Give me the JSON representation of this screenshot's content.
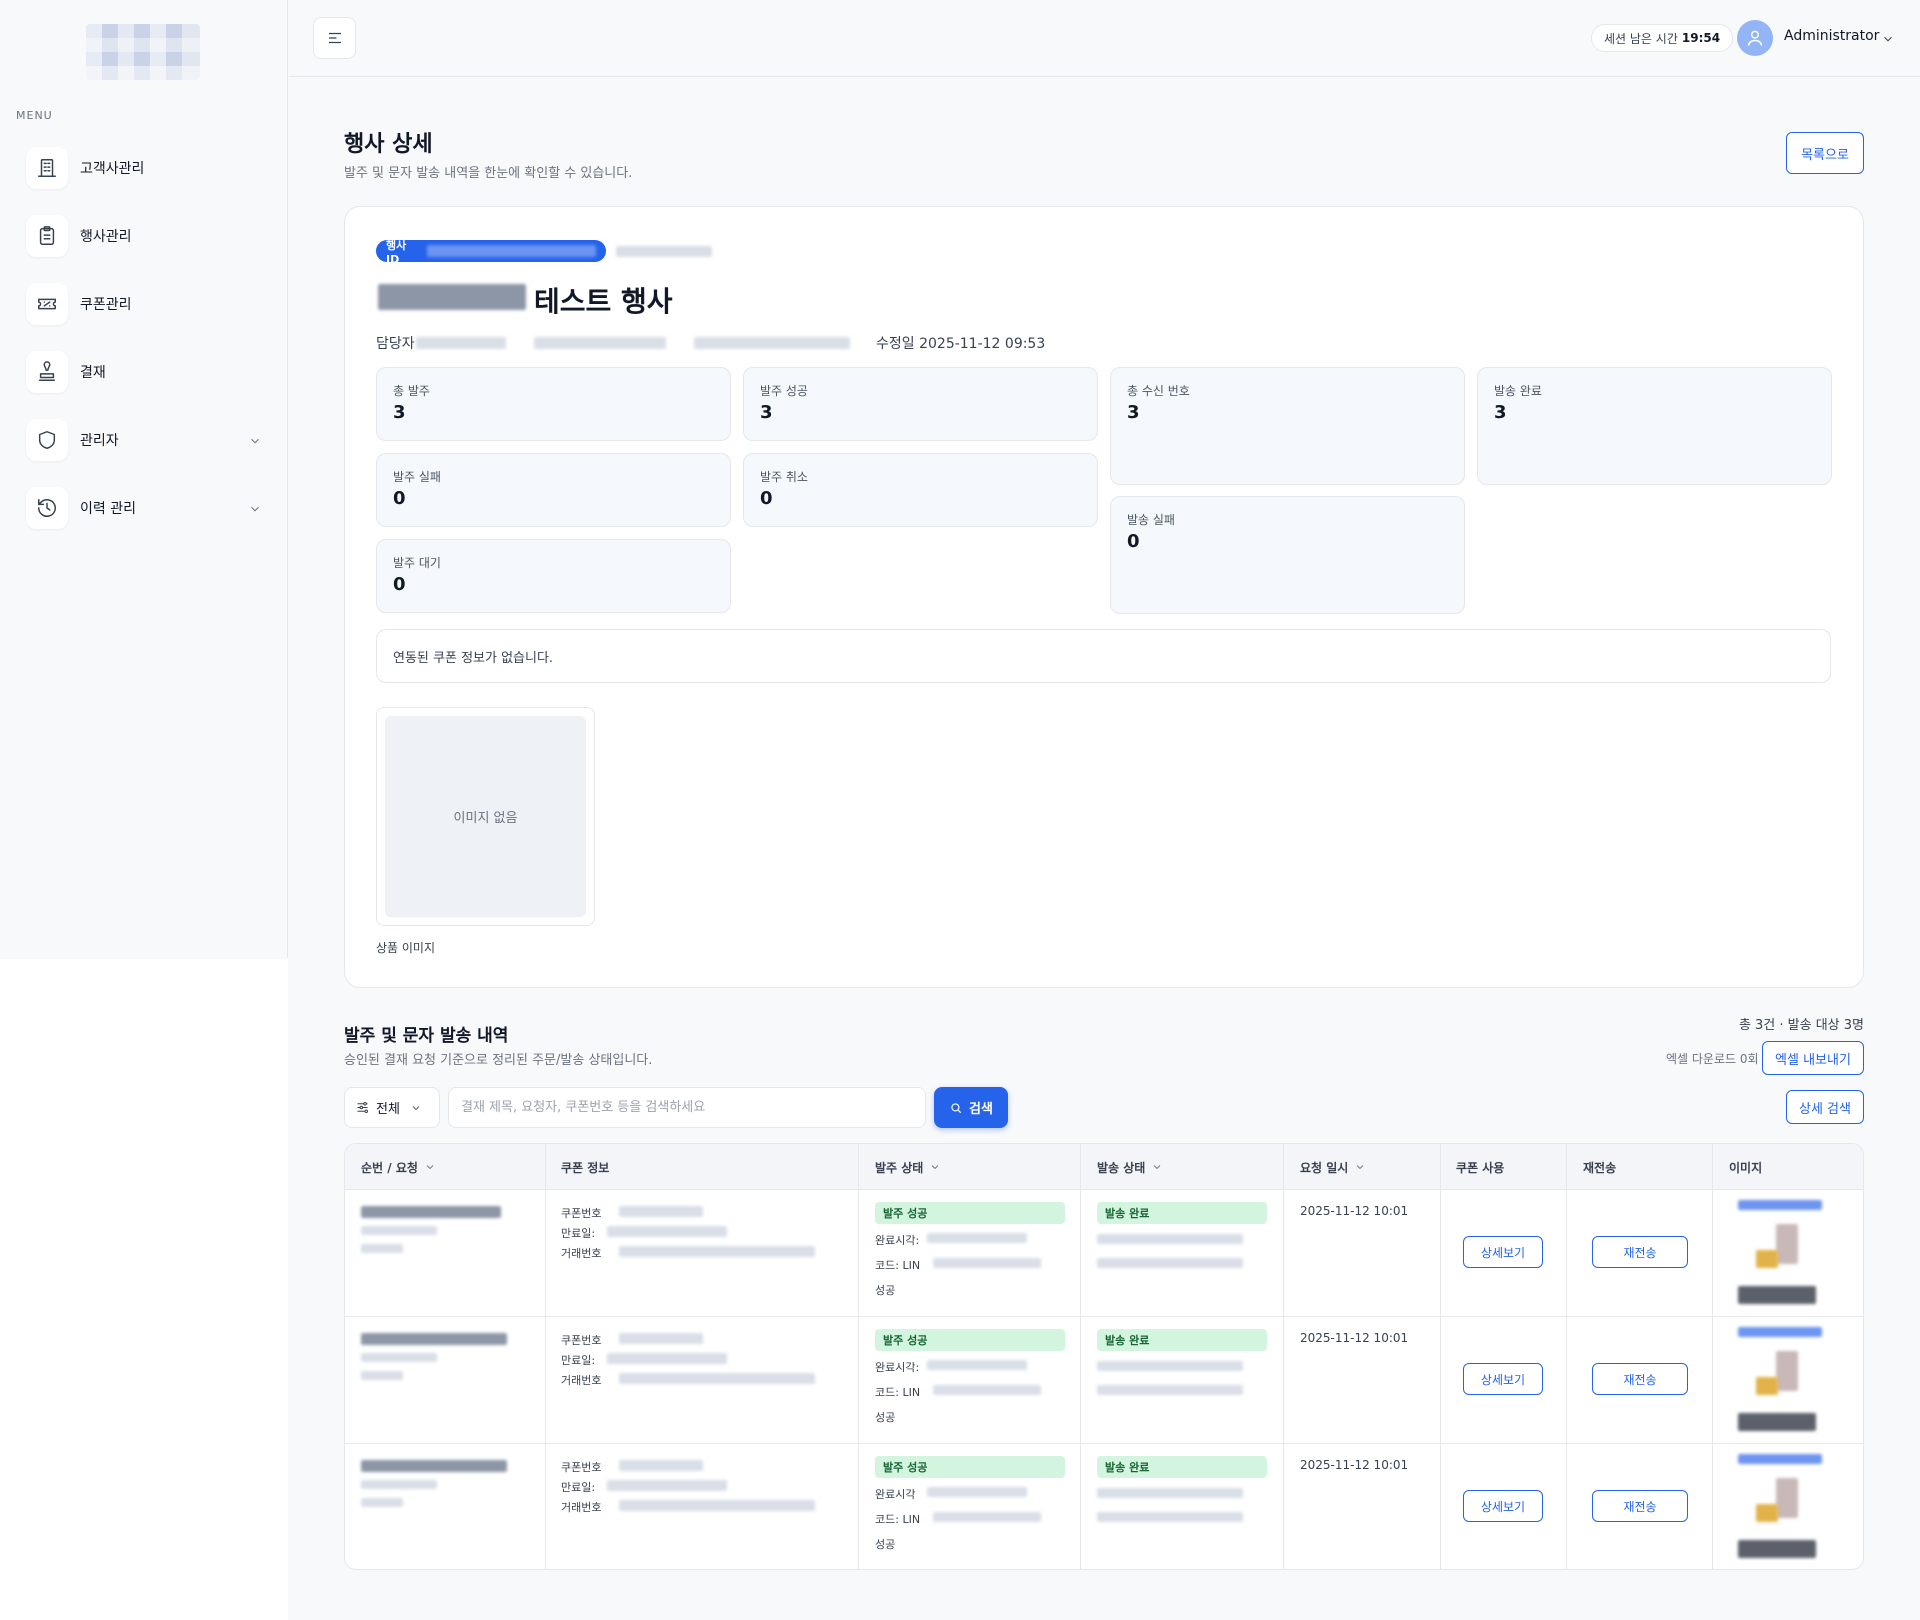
{
  "sidebar": {
    "menu_title": "MENU",
    "items": [
      {
        "label": "고객사관리",
        "icon": "building-icon"
      },
      {
        "label": "행사관리",
        "icon": "clipboard-icon"
      },
      {
        "label": "쿠폰관리",
        "icon": "ticket-icon"
      },
      {
        "label": "결재",
        "icon": "stamp-icon"
      },
      {
        "label": "관리자",
        "icon": "shield-icon",
        "expandable": true
      },
      {
        "label": "이력 관리",
        "icon": "history-icon",
        "expandable": true
      }
    ]
  },
  "topbar": {
    "session_label": "세션 남은 시간",
    "session_time": "19:54",
    "user_name": "Administrator"
  },
  "page": {
    "title": "행사 상세",
    "subtitle": "발주 및 문자 발송 내역을 한눈에 확인할 수 있습니다.",
    "back_button": "목록으로"
  },
  "event": {
    "id_label": "행사 ID",
    "name_suffix": "테스트 행사",
    "manager_label": "담당자",
    "modified_label": "수정일",
    "modified_at": "2025-11-12 09:53",
    "stats": {
      "total_orders": {
        "label": "총 발주",
        "value": "3"
      },
      "order_success": {
        "label": "발주 성공",
        "value": "3"
      },
      "total_recipients": {
        "label": "총 수신 번호",
        "value": "3"
      },
      "send_complete": {
        "label": "발송 완료",
        "value": "3"
      },
      "order_failed": {
        "label": "발주 실패",
        "value": "0"
      },
      "order_cancelled": {
        "label": "발주 취소",
        "value": "0"
      },
      "send_failed": {
        "label": "발송 실패",
        "value": "0"
      },
      "order_pending": {
        "label": "발주 대기",
        "value": "0"
      }
    },
    "coupon_info": "연동된 쿠폰 정보가 없습니다.",
    "image_placeholder": "이미지 없음",
    "image_caption": "상품 이미지"
  },
  "history": {
    "title": "발주 및 문자 발송 내역",
    "subtitle": "승인된 결재 요청 기준으로 정리된 주문/발송 상태입니다.",
    "summary": "총 3건 · 발송 대상 3명",
    "download_count": "엑셀 다운로드 0회",
    "export_button": "엑셀 내보내기",
    "advanced_search_button": "상세 검색",
    "filter_label": "전체",
    "search_placeholder": "결재 제목, 요청자, 쿠폰번호 등을 검색하세요",
    "search_button": "검색",
    "columns": [
      "순번 / 요청",
      "쿠폰 정보",
      "발주 상태",
      "발송 상태",
      "요청 일시",
      "쿠폰 사용",
      "재전송",
      "이미지"
    ],
    "coupon_fields": {
      "number": "쿠폰번호",
      "expiry": "만료일:",
      "transaction": "거래번호"
    },
    "rows": [
      {
        "order_status": "발주 성공",
        "completed_label": "완료시각:",
        "code_label": "코드: LIN",
        "result": "성공",
        "send_status": "발송 완료",
        "requested_at": "2025-11-12 10:01",
        "detail_button": "상세보기",
        "resend_button": "재전송"
      },
      {
        "order_status": "발주 성공",
        "completed_label": "완료시각:",
        "code_label": "코드: LIN",
        "result": "성공",
        "send_status": "발송 완료",
        "requested_at": "2025-11-12 10:01",
        "detail_button": "상세보기",
        "resend_button": "재전송"
      },
      {
        "order_status": "발주 성공",
        "completed_label": "완료시각",
        "code_label": "코드: LIN",
        "result": "성공",
        "send_status": "발송 완료",
        "requested_at": "2025-11-12 10:01",
        "detail_button": "상세보기",
        "resend_button": "재전송"
      }
    ]
  },
  "colors": {
    "accent": "#2563eb",
    "success_bg": "#d3f5df",
    "success_text": "#166534",
    "stat_bg": "#f5f8fc"
  }
}
